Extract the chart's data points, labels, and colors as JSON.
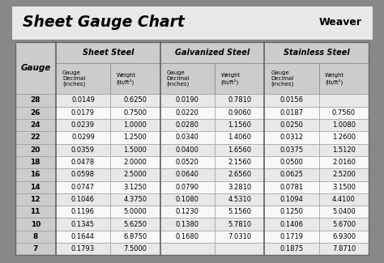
{
  "title": "Sheet Gauge Chart",
  "bg_outer": "#888888",
  "bg_title": "#e8e8e8",
  "bg_header": "#cccccc",
  "bg_gauge_col": "#cccccc",
  "bg_row_odd": "#e8e8e8",
  "bg_row_even": "#f8f8f8",
  "gauges": [
    28,
    26,
    24,
    22,
    20,
    18,
    16,
    14,
    12,
    11,
    10,
    8,
    7
  ],
  "sheet_steel_decimal": [
    "0.0149",
    "0.0179",
    "0.0239",
    "0.0299",
    "0.0359",
    "0.0478",
    "0.0598",
    "0.0747",
    "0.1046",
    "0.1196",
    "0.1345",
    "0.1644",
    "0.1793"
  ],
  "sheet_steel_weight": [
    "0.6250",
    "0.7500",
    "1.0000",
    "1.2500",
    "1.5000",
    "2.0000",
    "2.5000",
    "3.1250",
    "4.3750",
    "5.0000",
    "5.6250",
    "6.8750",
    "7.5000"
  ],
  "galv_steel_decimal": [
    "0.0190",
    "0.0220",
    "0.0280",
    "0.0340",
    "0.0400",
    "0.0520",
    "0.0640",
    "0.0790",
    "0.1080",
    "0.1230",
    "0.1380",
    "0.1680",
    ""
  ],
  "galv_steel_weight": [
    "0.7810",
    "0.9060",
    "1.1560",
    "1.4060",
    "1.6560",
    "2.1560",
    "2.6560",
    "3.2810",
    "4.5310",
    "5.1560",
    "5.7810",
    "7.0310",
    ""
  ],
  "stainless_decimal": [
    "0.0156",
    "0.0187",
    "0.0250",
    "0.0312",
    "0.0375",
    "0.0500",
    "0.0625",
    "0.0781",
    "0.1094",
    "0.1250",
    "0.1406",
    "0.1719",
    "0.1875"
  ],
  "stainless_weight": [
    "",
    "0.7560",
    "1.0080",
    "1.2600",
    "1.5120",
    "2.0160",
    "2.5200",
    "3.1500",
    "4.4100",
    "5.0400",
    "5.6700",
    "6.9300",
    "7.8710"
  ]
}
